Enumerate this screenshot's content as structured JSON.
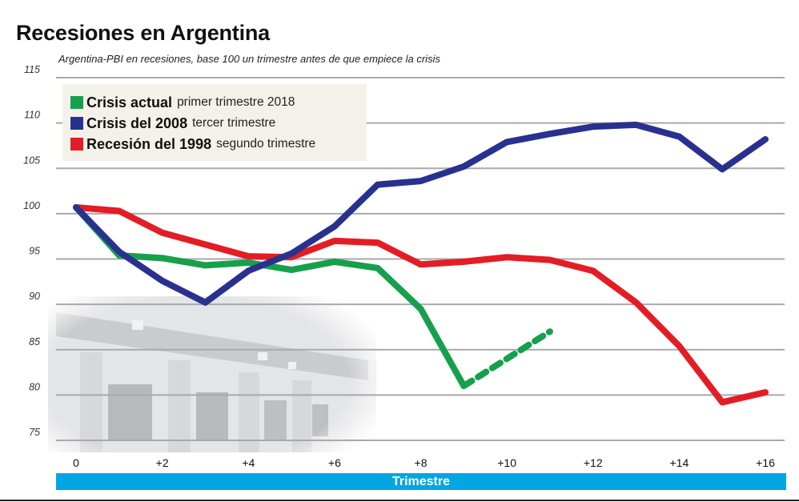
{
  "title": "Recesiones en Argentina",
  "subtitle": "Argentina-PBI en recesiones, base 100 un trimestre antes de que empiece la crisis",
  "background_image": "Edificio del Ministerio de Economía (foto atenuada)",
  "legend": [
    {
      "bold": "Crisis actual",
      "light": "primer trimestre 2018",
      "color": "#16a04c"
    },
    {
      "bold": "Crisis del 2008",
      "light": "tercer trimestre",
      "color": "#29318f"
    },
    {
      "bold": "Recesión del 1998",
      "light": "segundo trimestre",
      "color": "#e31d25"
    }
  ],
  "xaxis_bar_label": "Trimestre",
  "chart_data": {
    "type": "line",
    "title": "Recesiones en Argentina",
    "subtitle": "Argentina-PBI en recesiones, base 100 un trimestre antes de que empiece la crisis",
    "xlabel": "Trimestre",
    "ylabel": "",
    "x": [
      0,
      1,
      2,
      3,
      4,
      5,
      6,
      7,
      8,
      9,
      10,
      11,
      12,
      13,
      14,
      15,
      16
    ],
    "xticks": [
      0,
      2,
      4,
      6,
      8,
      10,
      12,
      14,
      16
    ],
    "xtick_labels": [
      "0",
      "+2",
      "+4",
      "+6",
      "+8",
      "+10",
      "+12",
      "+14",
      "+16"
    ],
    "xlim": [
      0,
      16
    ],
    "ylim": [
      75,
      115
    ],
    "yticks": [
      75,
      80,
      85,
      90,
      95,
      100,
      105,
      110,
      115
    ],
    "ytick_labels": [
      "75",
      "80",
      "85",
      "90",
      "95",
      "100",
      "105",
      "110",
      "115"
    ],
    "grid": true,
    "legend_position": "top-left",
    "series": [
      {
        "name": "Crisis actual primer trimestre 2018",
        "color": "#16a04c",
        "values": [
          100.7,
          95.4,
          95.1,
          94.3,
          94.6,
          93.8,
          94.7,
          94.0,
          89.5,
          81.0
        ],
        "projection": {
          "x": [
            9,
            10,
            11
          ],
          "values": [
            81.0,
            84.0,
            87.0
          ],
          "style": "dashed"
        }
      },
      {
        "name": "Crisis del 2008 tercer trimestre",
        "color": "#29318f",
        "values": [
          100.7,
          95.8,
          92.6,
          90.2,
          93.7,
          95.6,
          98.6,
          103.2,
          103.6,
          105.2,
          107.9,
          108.8,
          109.6,
          109.8,
          108.5,
          104.9,
          108.2
        ]
      },
      {
        "name": "Recesión del 1998 segundo trimestre",
        "color": "#e31d25",
        "values": [
          100.7,
          100.3,
          97.9,
          96.6,
          95.3,
          95.2,
          97.0,
          96.8,
          94.4,
          94.7,
          95.2,
          94.9,
          93.7,
          90.2,
          85.4,
          79.2,
          80.3
        ]
      }
    ]
  }
}
